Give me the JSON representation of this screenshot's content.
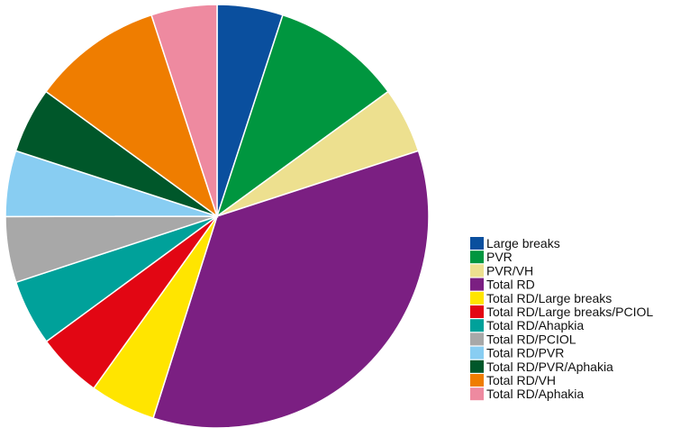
{
  "chart_data": {
    "type": "pie",
    "title": "",
    "start_angle_deg": 0,
    "direction": "clockwise",
    "legend_position": "right",
    "series": [
      {
        "name": "Large breaks",
        "value": 5.3,
        "color": "#0a4f9e"
      },
      {
        "name": "PVR",
        "value": 10.5,
        "color": "#00963f"
      },
      {
        "name": "PVR/VH",
        "value": 5.3,
        "color": "#ede08f"
      },
      {
        "name": "Total RD",
        "value": 36.8,
        "color": "#7b1f82"
      },
      {
        "name": "Total RD/Large breaks",
        "value": 5.3,
        "color": "#ffe500"
      },
      {
        "name": "Total RD/Large breaks/PCIOL",
        "value": 5.3,
        "color": "#e20613"
      },
      {
        "name": "Total RD/Ahapkia",
        "value": 5.3,
        "color": "#00a19a"
      },
      {
        "name": "Total RD/PCIOL",
        "value": 5.3,
        "color": "#a8a8a8"
      },
      {
        "name": "Total RD/PVR",
        "value": 5.3,
        "color": "#88cdf2"
      },
      {
        "name": "Total RD/PVR/Aphakia",
        "value": 5.3,
        "color": "#00572a"
      },
      {
        "name": "Total RD/VH",
        "value": 10.5,
        "color": "#ef7d00"
      },
      {
        "name": "Total RD/Aphakia",
        "value": 5.3,
        "color": "#ee8aa0"
      }
    ]
  }
}
